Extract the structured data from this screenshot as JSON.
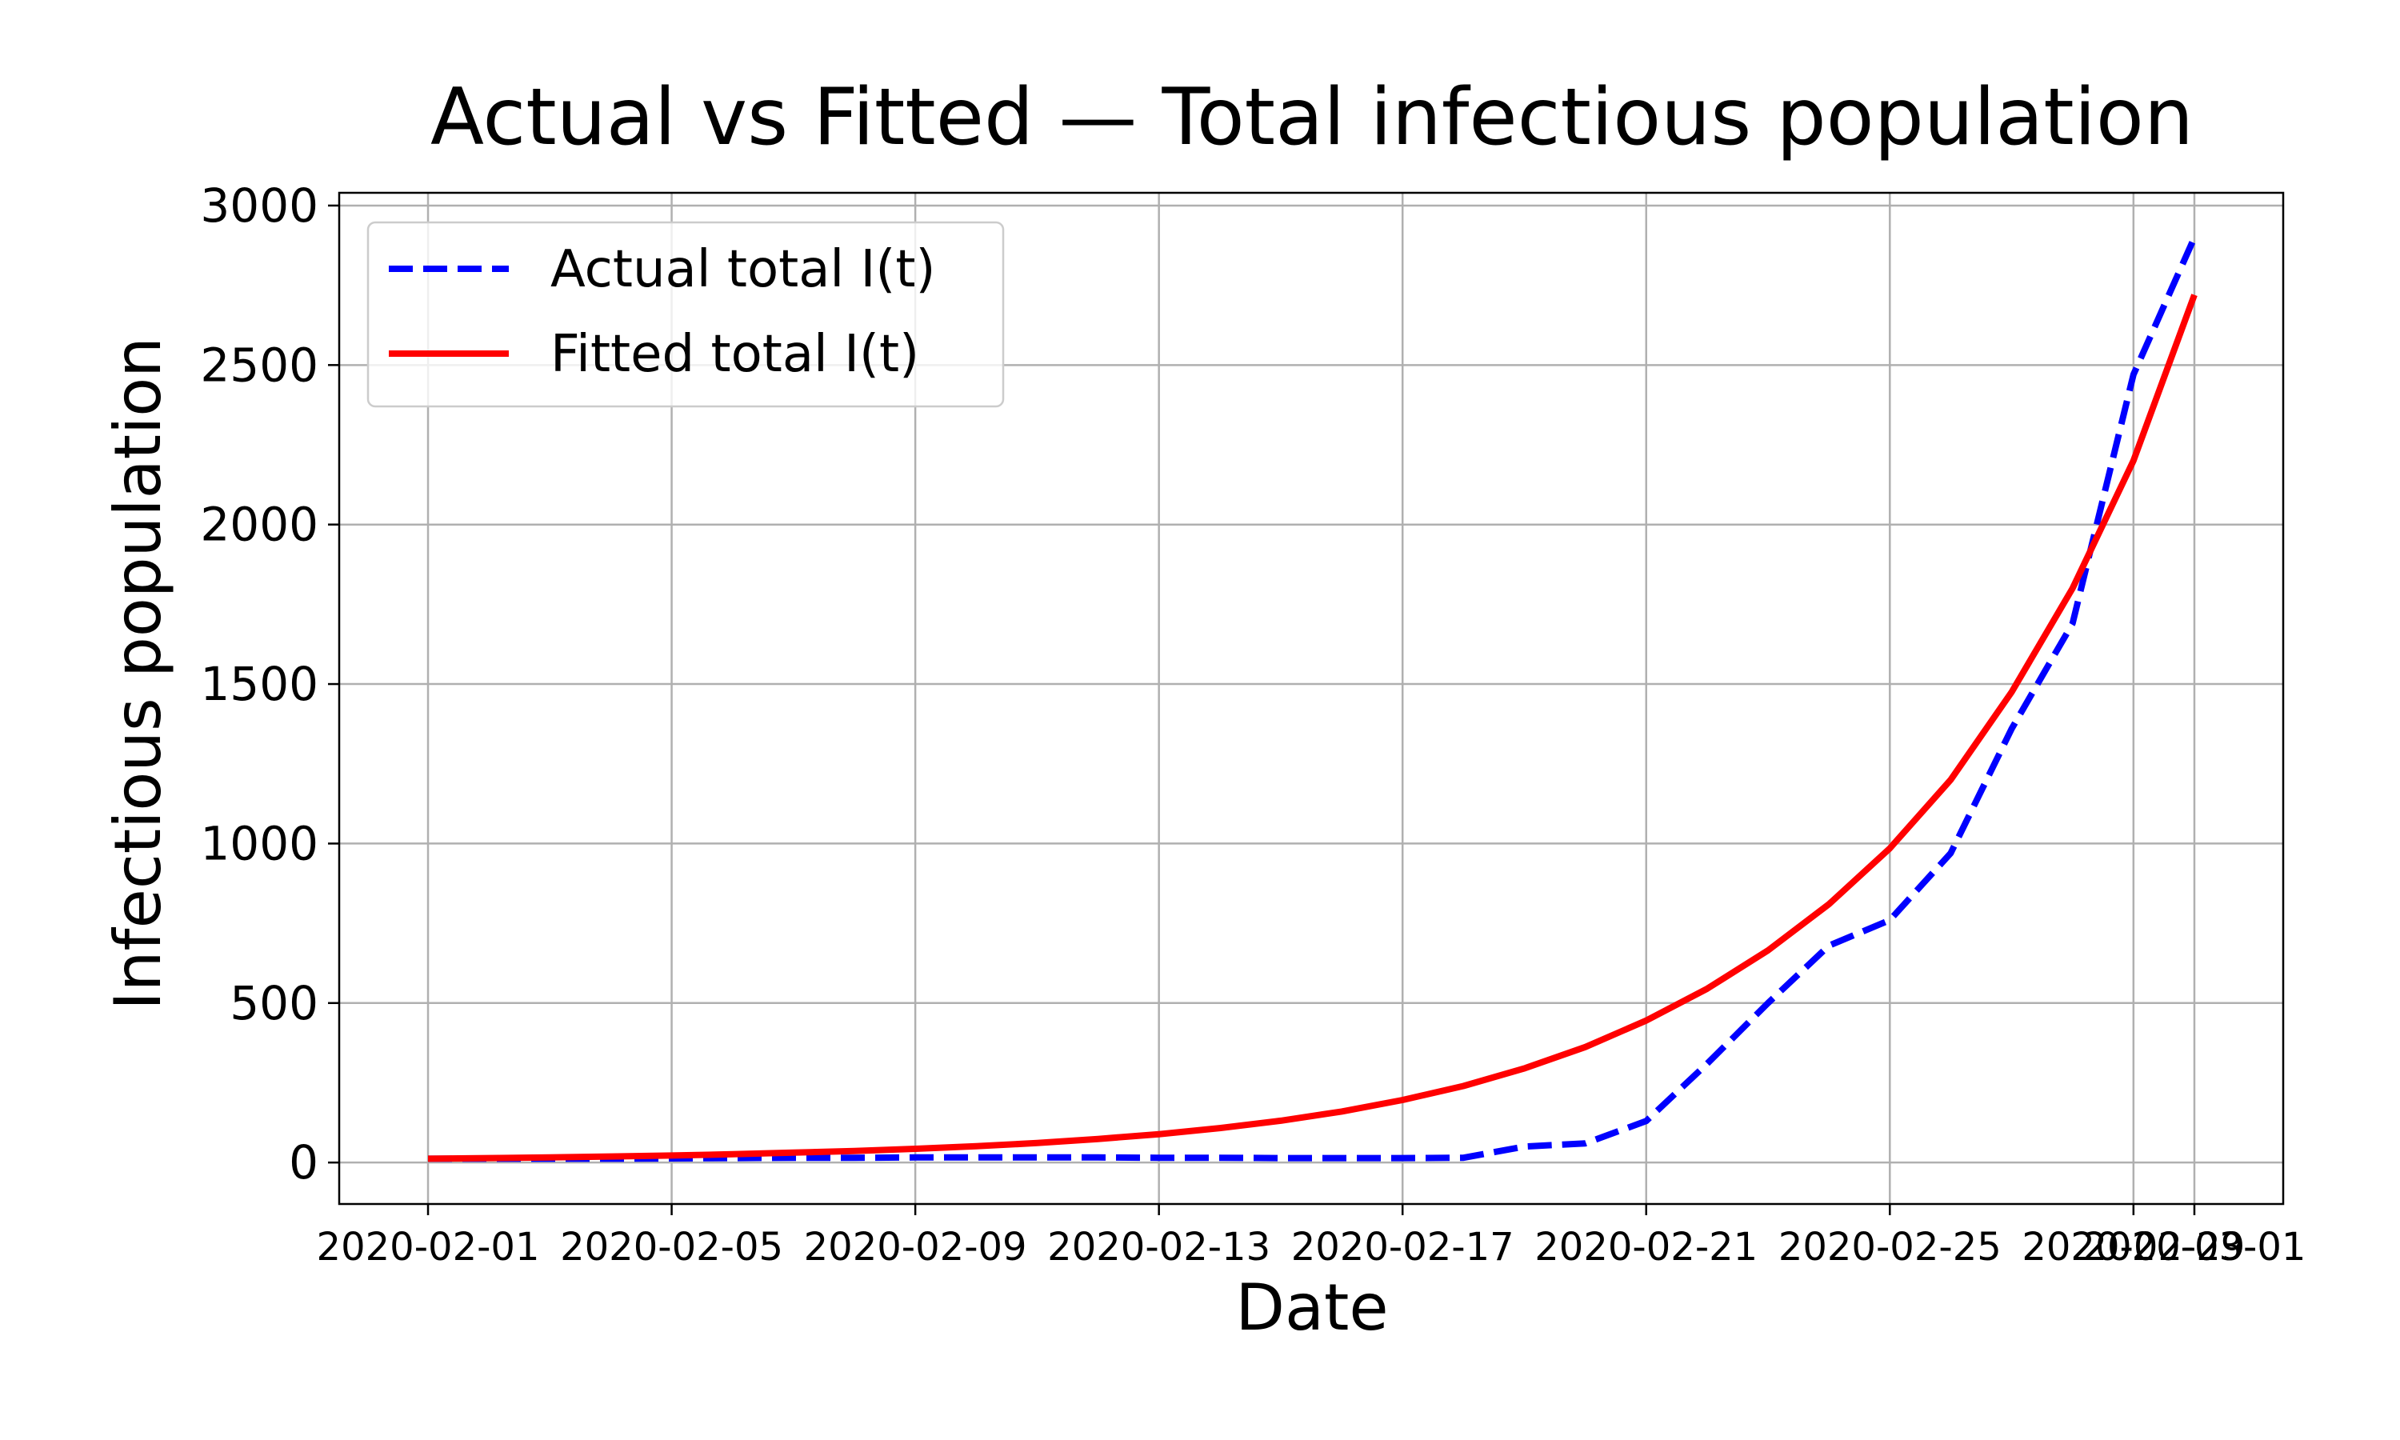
{
  "chart_data": {
    "type": "line",
    "title": "Actual vs Fitted  —  Total infectious population",
    "xlabel": "Date",
    "ylabel": "Infectious population",
    "x": [
      "2020-02-01",
      "2020-02-02",
      "2020-02-03",
      "2020-02-04",
      "2020-02-05",
      "2020-02-06",
      "2020-02-07",
      "2020-02-08",
      "2020-02-09",
      "2020-02-10",
      "2020-02-11",
      "2020-02-12",
      "2020-02-13",
      "2020-02-14",
      "2020-02-15",
      "2020-02-16",
      "2020-02-17",
      "2020-02-18",
      "2020-02-19",
      "2020-02-20",
      "2020-02-21",
      "2020-02-22",
      "2020-02-23",
      "2020-02-24",
      "2020-02-25",
      "2020-02-26",
      "2020-02-27",
      "2020-02-28",
      "2020-02-29",
      "2020-03-01"
    ],
    "series": [
      {
        "name": "Actual total I(t)",
        "color": "#0000ff",
        "style": "dashed",
        "values": [
          12,
          12,
          12,
          12,
          13,
          14,
          15,
          15,
          16,
          16,
          16,
          16,
          15,
          15,
          14,
          14,
          14,
          15,
          50,
          60,
          130,
          310,
          500,
          680,
          760,
          970,
          1360,
          1690,
          2470,
          2900
        ]
      },
      {
        "name": "Fitted total I(t)",
        "color": "#ff0000",
        "style": "solid",
        "values": [
          12,
          14,
          16,
          19,
          22,
          26,
          31,
          36,
          43,
          51,
          61,
          74,
          89,
          108,
          131,
          160,
          196,
          240,
          295,
          362,
          445,
          545,
          665,
          810,
          985,
          1200,
          1475,
          1800,
          2200,
          2720
        ]
      }
    ],
    "xticks": [
      "2020-02-01",
      "2020-02-05",
      "2020-02-09",
      "2020-02-13",
      "2020-02-17",
      "2020-02-21",
      "2020-02-25",
      "2020-02-29",
      "2020-03-01"
    ],
    "yticks": [
      0,
      500,
      1000,
      1500,
      2000,
      2500,
      3000
    ],
    "ylim": [
      -130,
      3040
    ],
    "xlim": [
      "2020-01-30 13:00",
      "2020-03-02 11:00"
    ],
    "grid": true,
    "legend": "top-left"
  }
}
